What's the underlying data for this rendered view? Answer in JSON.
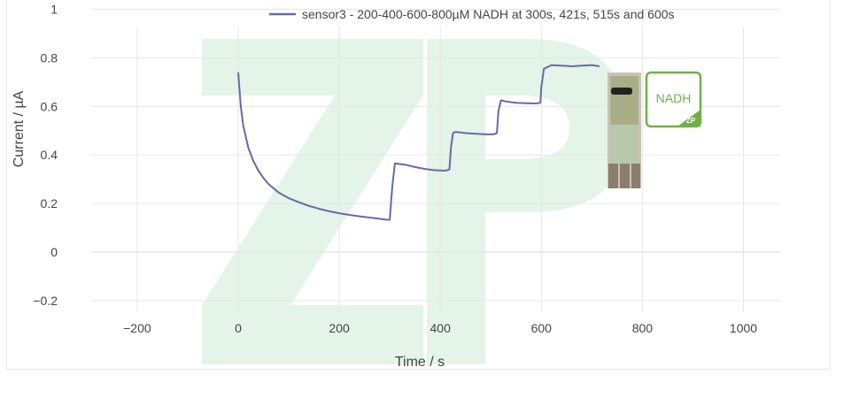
{
  "colors": {
    "line": "#6b68a8",
    "grid": "#e6e6e6",
    "watermark": "#e4f4e8",
    "nadh_badge": "#6fb04a",
    "text": "#444444"
  },
  "watermark_label": "ZP",
  "nadh_badge": {
    "label": "NADH",
    "corner_label": "ZP"
  },
  "chart_data": {
    "type": "line",
    "title": "",
    "xlabel": "Time / s",
    "ylabel": "Current / µA",
    "xlim": [
      -330,
      1075
    ],
    "ylim": [
      -0.3,
      1.0
    ],
    "x_ticks": [
      -200,
      0,
      200,
      400,
      600,
      800,
      1000
    ],
    "x_tick_labels": [
      "−200",
      "0",
      "200",
      "400",
      "600",
      "800",
      "1000"
    ],
    "y_ticks": [
      -0.2,
      0,
      0.2,
      0.4,
      0.6,
      0.8,
      1
    ],
    "y_tick_labels": [
      "−0.2",
      "0",
      "0.2",
      "0.4",
      "0.6",
      "0.8",
      "1"
    ],
    "grid": true,
    "legend_position": "top",
    "series": [
      {
        "name": "sensor3 - 200-400-600-800µM NADH at 300s, 421s, 515s and 600s",
        "x": [
          0,
          5,
          10,
          20,
          30,
          40,
          50,
          60,
          80,
          100,
          120,
          140,
          160,
          180,
          200,
          220,
          240,
          260,
          280,
          295,
          300,
          305,
          310,
          330,
          350,
          370,
          390,
          410,
          418,
          421,
          425,
          430,
          450,
          470,
          490,
          505,
          512,
          515,
          520,
          530,
          550,
          570,
          590,
          598,
          600,
          605,
          620,
          640,
          660,
          680,
          700,
          715
        ],
        "y": [
          0.74,
          0.6,
          0.52,
          0.43,
          0.375,
          0.335,
          0.305,
          0.28,
          0.245,
          0.222,
          0.205,
          0.19,
          0.178,
          0.168,
          0.16,
          0.153,
          0.147,
          0.142,
          0.137,
          0.133,
          0.133,
          0.27,
          0.365,
          0.36,
          0.35,
          0.342,
          0.337,
          0.335,
          0.34,
          0.43,
          0.49,
          0.495,
          0.49,
          0.487,
          0.485,
          0.485,
          0.49,
          0.58,
          0.625,
          0.62,
          0.615,
          0.613,
          0.612,
          0.615,
          0.68,
          0.755,
          0.77,
          0.768,
          0.765,
          0.768,
          0.77,
          0.765
        ]
      }
    ]
  }
}
